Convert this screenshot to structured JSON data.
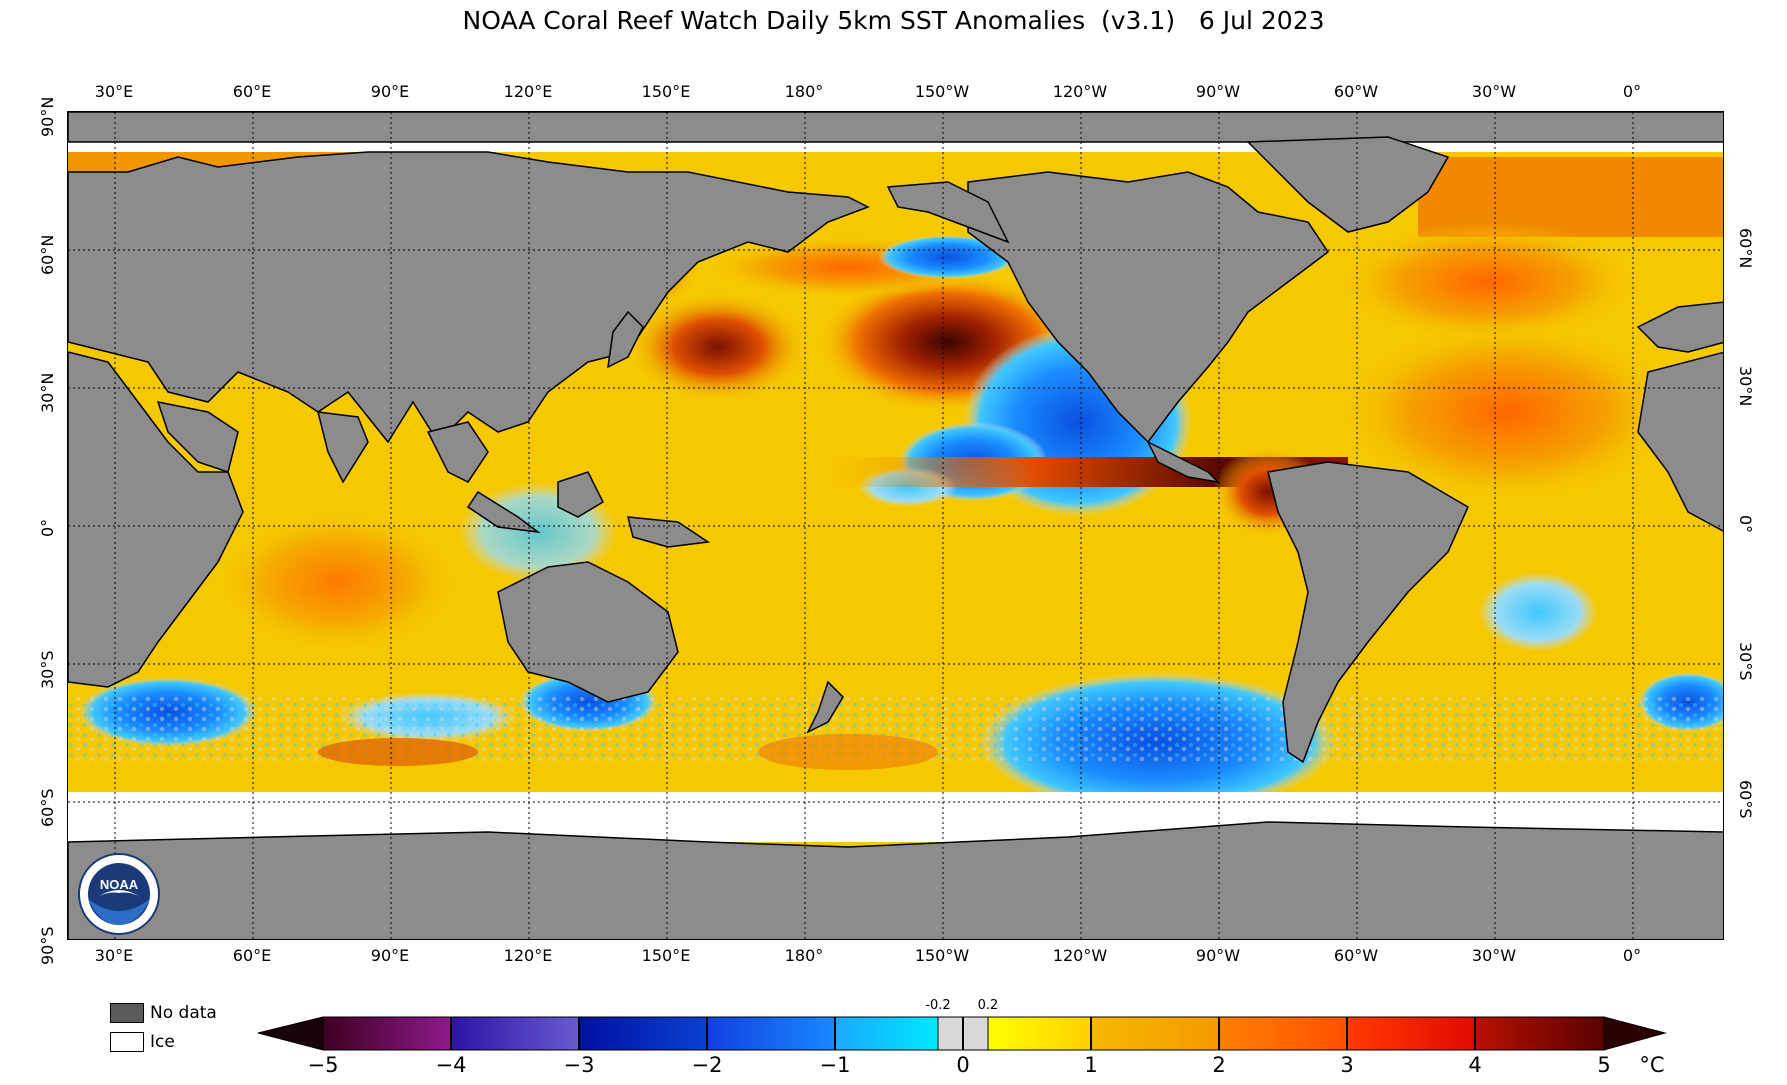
{
  "title": "NOAA Coral Reef Watch Daily 5km SST Anomalies  (v3.1)   6 Jul 2023",
  "map": {
    "top_lon_labels": [
      "30°E",
      "60°E",
      "90°E",
      "120°E",
      "150°E",
      "180°",
      "150°W",
      "120°W",
      "90°W",
      "60°W",
      "30°W",
      "0°"
    ],
    "bottom_lon_labels": [
      "30°E",
      "60°E",
      "90°E",
      "120°E",
      "150°E",
      "180°",
      "150°W",
      "120°W",
      "90°W",
      "60°W",
      "30°W",
      "0°"
    ],
    "left_lat_labels": [
      "90°N",
      "60°N",
      "30°N",
      "0°",
      "30°S",
      "60°S",
      "90°S"
    ],
    "right_lat_labels": [
      "60°N",
      "30°N",
      "0°",
      "30°S",
      "60°S"
    ],
    "colors": {
      "land": "#8c8c8c",
      "no_data": "#5a5a5a",
      "ice": "#ffffff",
      "ocean_base": "#f5c800"
    }
  },
  "legend": {
    "no_data_label": "No data",
    "ice_label": "Ice"
  },
  "colorbar": {
    "ticks": [
      "−5",
      "−4",
      "−3",
      "−2",
      "−1",
      "0",
      "1",
      "2",
      "3",
      "4",
      "5"
    ],
    "small_ticks": [
      "-0.2",
      "0.2"
    ],
    "unit": "°C",
    "colors": [
      "#3d0016",
      "#5c0a4f",
      "#8e1a8c",
      "#2a14a6",
      "#5a44cc",
      "#0010a0",
      "#1040e0",
      "#1a88ff",
      "#40c8ff",
      "#d9d9d9",
      "#ffff00",
      "#ffd000",
      "#f5a300",
      "#ff6600",
      "#ff2000",
      "#c01000",
      "#6a0000"
    ]
  },
  "logo_text": "NOAA"
}
